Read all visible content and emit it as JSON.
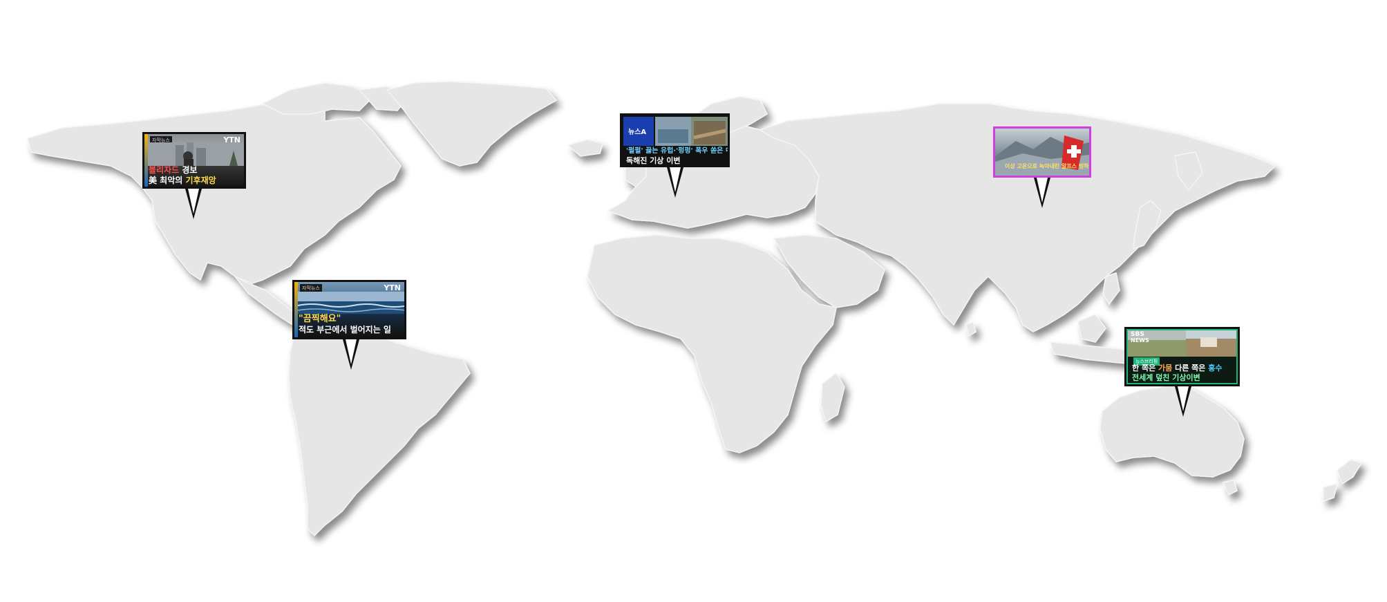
{
  "map": {
    "kind": "world-map",
    "land_color": "#e6e6e6"
  },
  "callouts": [
    {
      "id": "north-america",
      "tag": "자막뉴스",
      "logo": "YTN",
      "line1_accent": "블리자드",
      "line1_rest": " 경보",
      "line2_prefix": "美 최악의 ",
      "line2_accent": "기후재앙",
      "accent_color": "#ff4d4d",
      "accent2_color": "#ffd84d"
    },
    {
      "id": "south-america",
      "tag": "자막뉴스",
      "logo": "YTN",
      "line1": "\"끔찍해요\"",
      "line2": "적도 부근에서 벌어지는 일",
      "accent_color": "#ffd84d"
    },
    {
      "id": "europe",
      "logo": "뉴스A",
      "line1": "'펄펄' 끓는 유럽·'펑펑' 폭우 쏟은 中",
      "line2": "독해진 기상 이변",
      "accent_color": "#6fd1ff"
    },
    {
      "id": "asia",
      "caption": "이상 고온으로 녹아내린 알프스 빙하",
      "frame_color": "#d03fe0"
    },
    {
      "id": "oceania",
      "logo": "SBS",
      "logo_sub": "NEWS",
      "tag": "뉴스브리핑",
      "line1_prefix": "한 쪽은 ",
      "line1_accent1": "가뭄",
      "line1_mid": " 다른 쪽은 ",
      "line1_accent2": "홍수",
      "line2": "전세계 덮친 기상이변",
      "accent_color": "#ffa64d",
      "accent2_color": "#4dd0ff",
      "line2_color": "#7dffb0",
      "frame_color": "#1fb57a"
    }
  ]
}
